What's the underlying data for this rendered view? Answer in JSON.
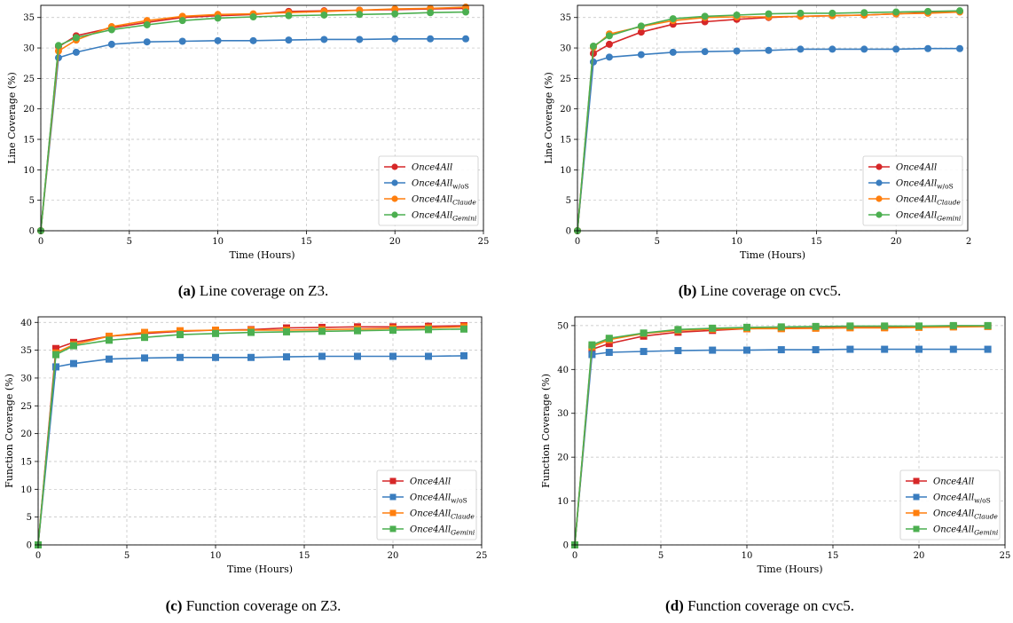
{
  "colors": {
    "red": "#d62728",
    "blue": "#3a7dbf",
    "orange": "#ff7f0e",
    "green": "#4caf50"
  },
  "captions": [
    {
      "tag": "(a)",
      "text": "Line coverage on Z3."
    },
    {
      "tag": "(b)",
      "text": "Line coverage on cvc5."
    },
    {
      "tag": "(c)",
      "text": "Function coverage on Z3."
    },
    {
      "tag": "(d)",
      "text": "Function coverage on cvc5."
    }
  ],
  "chart_data": [
    {
      "type": "line",
      "title": "",
      "xlabel": "Time (Hours)",
      "ylabel": "Line Coverage (%)",
      "xlim": [
        0,
        25
      ],
      "ylim": [
        0,
        37
      ],
      "xticks": [
        0,
        5,
        10,
        15,
        20,
        25
      ],
      "yticks": [
        0,
        5,
        10,
        15,
        20,
        25,
        30,
        35
      ],
      "marker": "circle",
      "grid": true,
      "legend_position": "bottom-right",
      "series": [
        {
          "name": "Once4All",
          "color_key": "red",
          "x": [
            0,
            1,
            2,
            4,
            6,
            8,
            10,
            12,
            14,
            16,
            18,
            20,
            22,
            24
          ],
          "y": [
            0,
            30.2,
            32.0,
            33.3,
            34.2,
            35.0,
            35.3,
            35.5,
            36.0,
            36.1,
            36.2,
            36.3,
            36.4,
            36.5
          ]
        },
        {
          "name_base": "Once4All",
          "name_sub": "w/oS",
          "color_key": "blue",
          "x": [
            0,
            1,
            2,
            4,
            6,
            8,
            10,
            12,
            14,
            16,
            18,
            20,
            22,
            24
          ],
          "y": [
            0,
            28.4,
            29.3,
            30.6,
            31.0,
            31.1,
            31.2,
            31.2,
            31.3,
            31.4,
            31.4,
            31.5,
            31.5,
            31.5
          ]
        },
        {
          "name_base": "Once4All",
          "name_sub": "Claude",
          "color_key": "orange",
          "x": [
            0,
            1,
            2,
            4,
            6,
            8,
            10,
            12,
            14,
            16,
            18,
            20,
            22,
            24
          ],
          "y": [
            0,
            29.5,
            31.3,
            33.5,
            34.5,
            35.2,
            35.5,
            35.6,
            35.8,
            36.0,
            36.2,
            36.4,
            36.5,
            36.7
          ]
        },
        {
          "name_base": "Once4All",
          "name_sub": "Gemini",
          "color_key": "green",
          "x": [
            0,
            1,
            2,
            4,
            6,
            8,
            10,
            12,
            14,
            16,
            18,
            20,
            22,
            24
          ],
          "y": [
            0,
            30.4,
            31.7,
            33.0,
            33.8,
            34.5,
            34.9,
            35.1,
            35.3,
            35.4,
            35.5,
            35.6,
            35.8,
            35.9
          ]
        }
      ]
    },
    {
      "type": "line",
      "title": "",
      "xlabel": "Time (Hours)",
      "ylabel": "Line Coverage (%)",
      "xlim": [
        0,
        24.5
      ],
      "ylim": [
        0,
        37
      ],
      "xticks": [
        0,
        5,
        10,
        15,
        20
      ],
      "xtick_partial": "2",
      "yticks": [
        0,
        5,
        10,
        15,
        20,
        25,
        30,
        35
      ],
      "marker": "circle",
      "grid": true,
      "legend_position": "bottom-right",
      "series": [
        {
          "name": "Once4All",
          "color_key": "red",
          "x": [
            0,
            1,
            2,
            4,
            6,
            8,
            10,
            12,
            14,
            16,
            18,
            20,
            22,
            24
          ],
          "y": [
            0,
            29.1,
            30.6,
            32.6,
            33.9,
            34.3,
            34.7,
            35.0,
            35.2,
            35.3,
            35.4,
            35.6,
            35.8,
            36.0
          ]
        },
        {
          "name_base": "Once4All",
          "name_sub": "w/oS",
          "color_key": "blue",
          "x": [
            0,
            1,
            2,
            4,
            6,
            8,
            10,
            12,
            14,
            16,
            18,
            20,
            22,
            24
          ],
          "y": [
            0,
            27.7,
            28.5,
            28.9,
            29.3,
            29.4,
            29.5,
            29.6,
            29.8,
            29.8,
            29.8,
            29.8,
            29.9,
            29.9
          ]
        },
        {
          "name_base": "Once4All",
          "name_sub": "Claude",
          "color_key": "orange",
          "x": [
            0,
            1,
            2,
            4,
            6,
            8,
            10,
            12,
            14,
            16,
            18,
            20,
            22,
            24
          ],
          "y": [
            0,
            30.1,
            32.3,
            33.5,
            34.5,
            35.0,
            35.1,
            35.1,
            35.2,
            35.3,
            35.4,
            35.6,
            35.7,
            35.9
          ]
        },
        {
          "name_base": "Once4All",
          "name_sub": "Gemini",
          "color_key": "green",
          "x": [
            0,
            1,
            2,
            4,
            6,
            8,
            10,
            12,
            14,
            16,
            18,
            20,
            22,
            24
          ],
          "y": [
            0,
            30.3,
            32.0,
            33.6,
            34.8,
            35.2,
            35.4,
            35.6,
            35.7,
            35.7,
            35.8,
            35.9,
            36.0,
            36.1
          ]
        }
      ]
    },
    {
      "type": "line",
      "title": "",
      "xlabel": "Time (Hours)",
      "ylabel": "Function Coverage (%)",
      "xlim": [
        0,
        25
      ],
      "ylim": [
        0,
        41
      ],
      "xticks": [
        0,
        5,
        10,
        15,
        20,
        25
      ],
      "yticks": [
        0,
        5,
        10,
        15,
        20,
        25,
        30,
        35,
        40
      ],
      "marker": "square",
      "grid": true,
      "legend_position": "bottom-right",
      "series": [
        {
          "name": "Once4All",
          "color_key": "red",
          "x": [
            0,
            1,
            2,
            4,
            6,
            8,
            10,
            12,
            14,
            16,
            18,
            20,
            22,
            24
          ],
          "y": [
            0,
            35.3,
            36.4,
            37.5,
            38.0,
            38.4,
            38.6,
            38.7,
            39.0,
            39.1,
            39.2,
            39.2,
            39.3,
            39.4
          ]
        },
        {
          "name_base": "Once4All",
          "name_sub": "w/oS",
          "color_key": "blue",
          "x": [
            0,
            1,
            2,
            4,
            6,
            8,
            10,
            12,
            14,
            16,
            18,
            20,
            22,
            24
          ],
          "y": [
            0,
            32.0,
            32.6,
            33.4,
            33.6,
            33.7,
            33.7,
            33.7,
            33.8,
            33.9,
            33.9,
            33.9,
            33.9,
            34.0
          ]
        },
        {
          "name_base": "Once4All",
          "name_sub": "Claude",
          "color_key": "orange",
          "x": [
            0,
            1,
            2,
            4,
            6,
            8,
            10,
            12,
            14,
            16,
            18,
            20,
            22,
            24
          ],
          "y": [
            0,
            34.5,
            36.0,
            37.5,
            38.2,
            38.5,
            38.6,
            38.6,
            38.6,
            38.7,
            38.8,
            38.9,
            39.0,
            39.2
          ]
        },
        {
          "name_base": "Once4All",
          "name_sub": "Gemini",
          "color_key": "green",
          "x": [
            0,
            1,
            2,
            4,
            6,
            8,
            10,
            12,
            14,
            16,
            18,
            20,
            22,
            24
          ],
          "y": [
            0,
            34.2,
            35.8,
            36.8,
            37.3,
            37.8,
            38.0,
            38.2,
            38.3,
            38.4,
            38.5,
            38.6,
            38.7,
            38.8
          ]
        }
      ]
    },
    {
      "type": "line",
      "title": "",
      "xlabel": "Time (Hours)",
      "ylabel": "Function Coverage (%)",
      "xlim": [
        0,
        25
      ],
      "ylim": [
        0,
        52
      ],
      "xticks": [
        0,
        5,
        10,
        15,
        20,
        25
      ],
      "yticks": [
        0,
        10,
        20,
        30,
        40,
        50
      ],
      "marker": "square",
      "grid": true,
      "legend_position": "bottom-right",
      "series": [
        {
          "name": "Once4All",
          "color_key": "red",
          "x": [
            0,
            1,
            2,
            4,
            6,
            8,
            10,
            12,
            14,
            16,
            18,
            20,
            22,
            24
          ],
          "y": [
            0,
            44.6,
            45.9,
            47.6,
            48.5,
            48.9,
            49.3,
            49.4,
            49.5,
            49.6,
            49.6,
            49.7,
            49.8,
            49.9
          ]
        },
        {
          "name_base": "Once4All",
          "name_sub": "w/oS",
          "color_key": "blue",
          "x": [
            0,
            1,
            2,
            4,
            6,
            8,
            10,
            12,
            14,
            16,
            18,
            20,
            22,
            24
          ],
          "y": [
            0,
            43.4,
            43.9,
            44.1,
            44.3,
            44.4,
            44.4,
            44.5,
            44.5,
            44.6,
            44.6,
            44.6,
            44.6,
            44.6
          ]
        },
        {
          "name_base": "Once4All",
          "name_sub": "Claude",
          "color_key": "orange",
          "x": [
            0,
            1,
            2,
            4,
            6,
            8,
            10,
            12,
            14,
            16,
            18,
            20,
            22,
            24
          ],
          "y": [
            0,
            45.2,
            46.8,
            48.2,
            48.9,
            49.2,
            49.3,
            49.3,
            49.4,
            49.5,
            49.5,
            49.6,
            49.7,
            49.8
          ]
        },
        {
          "name_base": "Once4All",
          "name_sub": "Gemini",
          "color_key": "green",
          "x": [
            0,
            1,
            2,
            4,
            6,
            8,
            10,
            12,
            14,
            16,
            18,
            20,
            22,
            24
          ],
          "y": [
            0,
            45.6,
            47.1,
            48.3,
            49.1,
            49.4,
            49.6,
            49.7,
            49.8,
            49.9,
            49.9,
            49.9,
            50.0,
            50.0
          ]
        }
      ]
    }
  ]
}
